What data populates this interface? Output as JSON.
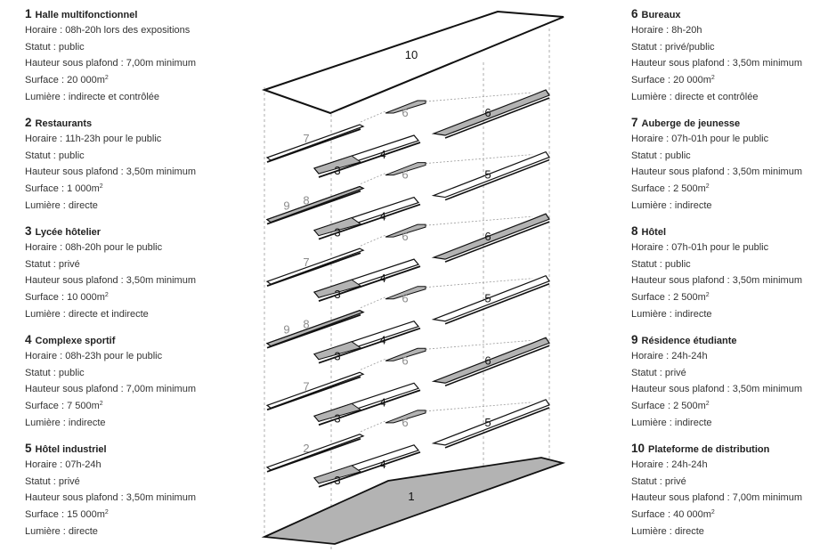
{
  "legend_left": [
    {
      "num": "1",
      "name": "Halle multifonctionnel",
      "lines": [
        {
          "text": "Horaire : 08h-20h lors des expositions"
        },
        {
          "text": "Statut : public"
        },
        {
          "text": "Hauteur sous plafond : 7,00m minimum"
        },
        {
          "text": "Surface : 20 000m",
          "sup": "2"
        },
        {
          "text": "Lumière : indirecte et contrôlée"
        }
      ]
    },
    {
      "num": "2",
      "name": "Restaurants",
      "lines": [
        {
          "text": "Horaire : 11h-23h pour le public"
        },
        {
          "text": "Statut : public"
        },
        {
          "text": "Hauteur sous plafond : 3,50m minimum"
        },
        {
          "text": "Surface : 1 000m",
          "sup": "2"
        },
        {
          "text": "Lumière : directe"
        }
      ]
    },
    {
      "num": "3",
      "name": "Lycée hôtelier",
      "lines": [
        {
          "text": "Horaire : 08h-20h pour le public"
        },
        {
          "text": "Statut : privé"
        },
        {
          "text": "Hauteur sous plafond : 3,50m minimum"
        },
        {
          "text": "Surface : 10 000m",
          "sup": "2"
        },
        {
          "text": "Lumière : directe et indirecte"
        }
      ]
    },
    {
      "num": "4",
      "name": "Complexe sportif",
      "lines": [
        {
          "text": "Horaire : 08h-23h pour le public"
        },
        {
          "text": "Statut : public"
        },
        {
          "text": "Hauteur sous plafond : 7,00m minimum"
        },
        {
          "text": "Surface : 7 500m",
          "sup": "2"
        },
        {
          "text": "Lumière : indirecte"
        }
      ]
    },
    {
      "num": "5",
      "name": "Hôtel industriel",
      "lines": [
        {
          "text": "Horaire : 07h-24h"
        },
        {
          "text": "Statut : privé"
        },
        {
          "text": "Hauteur sous plafond : 3,50m minimum"
        },
        {
          "text": "Surface : 15 000m",
          "sup": "2"
        },
        {
          "text": "Lumière : directe"
        }
      ]
    }
  ],
  "legend_right": [
    {
      "num": "6",
      "name": "Bureaux",
      "lines": [
        {
          "text": "Horaire : 8h-20h"
        },
        {
          "text": "Statut : privé/public"
        },
        {
          "text": "Hauteur sous plafond : 3,50m minimum"
        },
        {
          "text": "Surface : 20 000m",
          "sup": "2"
        },
        {
          "text": "Lumière : directe et contrôlée"
        }
      ]
    },
    {
      "num": "7",
      "name": "Auberge de jeunesse",
      "lines": [
        {
          "text": "Horaire : 07h-01h pour le public"
        },
        {
          "text": "Statut : public"
        },
        {
          "text": "Hauteur sous plafond : 3,50m minimum"
        },
        {
          "text": "Surface : 2 500m",
          "sup": "2"
        },
        {
          "text": "Lumière : indirecte"
        }
      ]
    },
    {
      "num": "8",
      "name": "Hôtel",
      "lines": [
        {
          "text": "Horaire : 07h-01h pour le public"
        },
        {
          "text": "Statut : public"
        },
        {
          "text": "Hauteur sous plafond : 3,50m minimum"
        },
        {
          "text": "Surface : 2 500m",
          "sup": "2"
        },
        {
          "text": "Lumière : indirecte"
        }
      ]
    },
    {
      "num": "9",
      "name": "Résidence étudiante",
      "lines": [
        {
          "text": "Horaire : 24h-24h"
        },
        {
          "text": "Statut : privé"
        },
        {
          "text": "Hauteur sous plafond : 3,50m minimum"
        },
        {
          "text": "Surface : 2 500m",
          "sup": "2"
        },
        {
          "text": "Lumière : indirecte"
        }
      ]
    },
    {
      "num": "10",
      "name": "Plateforme de distribution",
      "lines": [
        {
          "text": "Horaire : 24h-24h"
        },
        {
          "text": "Statut : privé"
        },
        {
          "text": "Hauteur sous plafond : 7,00m minimum"
        },
        {
          "text": "Surface : 40 000m",
          "sup": "2"
        },
        {
          "text": "Lumière : directe"
        }
      ]
    }
  ],
  "diagram": {
    "colors": {
      "stroke": "#111111",
      "fill_grey": "#b3b3b3",
      "label_grey": "#8c8c8c",
      "guide": "#9a9a9a"
    },
    "roof_label": "10",
    "ground_label": "1",
    "floors": [
      {
        "left": "7",
        "left_shaded": false,
        "left_extra": null,
        "mid": "4",
        "mid_left": "3",
        "right": "6",
        "right_kind": "6"
      },
      {
        "left": "8",
        "left_shaded": true,
        "left_extra": "9",
        "mid": "4",
        "mid_left": "3",
        "right": "6",
        "right_kind": "5"
      },
      {
        "left": "7",
        "left_shaded": false,
        "left_extra": null,
        "mid": "4",
        "mid_left": "3",
        "right": "6",
        "right_kind": "6"
      },
      {
        "left": "8",
        "left_shaded": true,
        "left_extra": "9",
        "mid": "4",
        "mid_left": "3",
        "right": "6",
        "right_kind": "5"
      },
      {
        "left": "7",
        "left_shaded": false,
        "left_extra": null,
        "mid": "4",
        "mid_left": "3",
        "right": "6",
        "right_kind": "6"
      },
      {
        "left": "2",
        "left_shaded": false,
        "left_extra": null,
        "mid": "4",
        "mid_left": "3",
        "right": "6",
        "right_kind": "5"
      }
    ]
  }
}
